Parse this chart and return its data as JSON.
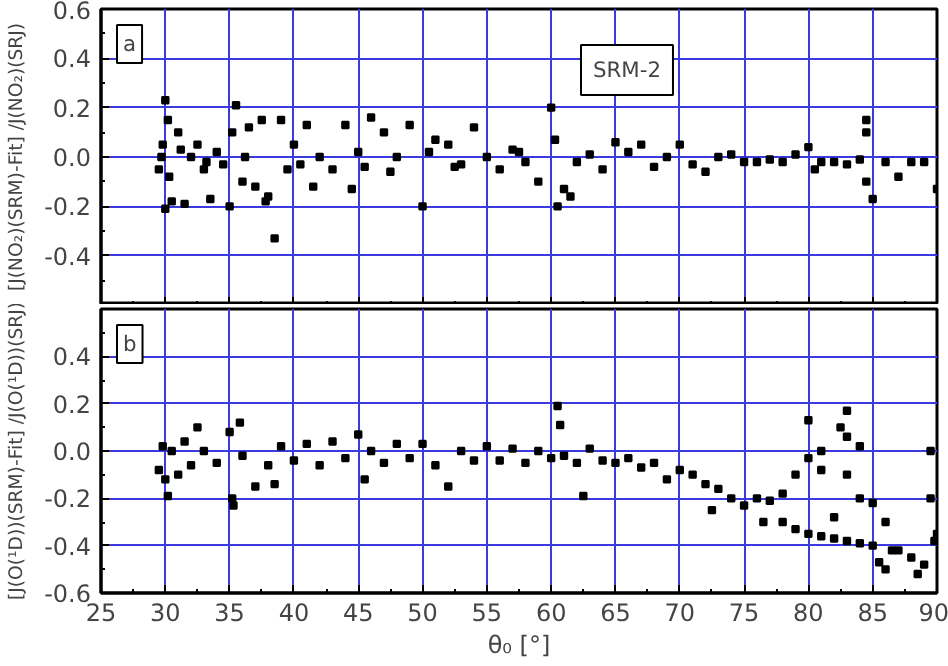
{
  "chart_data": [
    {
      "type": "scatter",
      "ylabel": "[J(NO₂)(SRM)-Fit] /J(NO₂)(SRJ)",
      "annotations": [
        "a",
        "SRM-2"
      ],
      "marker": "square",
      "grid": true,
      "tick_labels": "y",
      "xlim": [
        25,
        90
      ],
      "xticks": [
        25,
        30,
        35,
        40,
        45,
        50,
        55,
        60,
        65,
        70,
        75,
        80,
        85,
        90
      ],
      "ylim": [
        -0.6,
        0.6
      ],
      "yticks": [
        {
          "value": -0.6,
          "label": null
        },
        -0.4,
        -0.2,
        {
          "value": 0,
          "label": "0.0"
        },
        0.2,
        0.4,
        0.6
      ],
      "series": [
        {
          "color": "#000000",
          "x": [
            29.5,
            29.7,
            29.8,
            30,
            30,
            30.2,
            30.3,
            30.5,
            31,
            31.2,
            31.5,
            32,
            32.5,
            33,
            33.2,
            33.5,
            34,
            34.5,
            35,
            35.2,
            35.5,
            36,
            36.2,
            36.5,
            37,
            37.5,
            37.8,
            38,
            38.5,
            39,
            39.5,
            40,
            40.5,
            41,
            41.5,
            42,
            43,
            44,
            44.5,
            45,
            45.5,
            46,
            47,
            47.5,
            48,
            49,
            50,
            50.5,
            51,
            52,
            52.5,
            53,
            54,
            55,
            56,
            57,
            57.5,
            58,
            59,
            60,
            60.3,
            60.5,
            61,
            61.5,
            62,
            63,
            64,
            65,
            66,
            67,
            68,
            69,
            70,
            71,
            72,
            73,
            74,
            75,
            76,
            77,
            78,
            79,
            80,
            80.5,
            81,
            82,
            83,
            84,
            84.5,
            84.5,
            84.5,
            85,
            86,
            87,
            88,
            89,
            90
          ],
          "values": [
            -0.05,
            0.0,
            0.05,
            0.23,
            -0.21,
            0.15,
            -0.08,
            -0.18,
            0.1,
            0.03,
            -0.19,
            0.0,
            0.05,
            -0.05,
            -0.02,
            -0.17,
            0.02,
            -0.03,
            -0.2,
            0.1,
            0.21,
            -0.1,
            0.0,
            0.12,
            -0.12,
            0.15,
            -0.18,
            -0.16,
            -0.33,
            0.15,
            -0.05,
            0.05,
            -0.03,
            0.13,
            -0.12,
            0.0,
            -0.05,
            0.13,
            -0.13,
            0.02,
            -0.04,
            0.16,
            0.1,
            -0.06,
            0.0,
            0.13,
            -0.2,
            0.02,
            0.07,
            0.05,
            -0.04,
            -0.03,
            0.12,
            0.0,
            -0.05,
            0.03,
            0.02,
            -0.02,
            -0.1,
            0.2,
            0.07,
            -0.2,
            -0.13,
            -0.16,
            -0.02,
            0.01,
            -0.05,
            0.06,
            0.02,
            0.05,
            -0.04,
            0.0,
            0.05,
            -0.03,
            -0.06,
            0.0,
            0.01,
            -0.02,
            -0.02,
            -0.01,
            -0.02,
            0.01,
            0.04,
            -0.05,
            -0.02,
            -0.02,
            -0.03,
            -0.01,
            0.15,
            0.1,
            -0.1,
            -0.17,
            -0.02,
            -0.08,
            -0.02,
            -0.02,
            -0.13
          ]
        }
      ]
    },
    {
      "type": "scatter",
      "ylabel": "[J(O(¹D))(SRM)-Fit] /J(O(¹D))(SRJ)",
      "xlabel": "θ₀ [°]",
      "annotations": [
        "b"
      ],
      "marker": "square",
      "grid": true,
      "xlim": [
        25,
        90
      ],
      "xticks": [
        25,
        30,
        35,
        40,
        45,
        50,
        55,
        60,
        65,
        70,
        75,
        80,
        85,
        90
      ],
      "ylim": [
        -0.6,
        0.6
      ],
      "yticks": [
        -0.6,
        -0.4,
        -0.2,
        {
          "value": 0,
          "label": "0.0"
        },
        0.2,
        0.4,
        {
          "value": 0.6,
          "label": null
        }
      ],
      "series": [
        {
          "color": "#000000",
          "x": [
            29.5,
            29.8,
            30,
            30.2,
            30.5,
            31,
            31.5,
            32,
            32.5,
            33,
            34,
            35,
            35.2,
            35.3,
            35.8,
            36,
            37,
            38,
            38.5,
            39,
            40,
            41,
            42,
            43,
            44,
            45,
            45.5,
            46,
            47,
            48,
            49,
            50,
            51,
            52,
            53,
            54,
            55,
            56,
            57,
            58,
            59,
            60,
            60.5,
            60.7,
            61,
            62,
            62.5,
            63,
            64,
            65,
            66,
            67,
            68,
            69,
            70,
            71,
            72,
            72.5,
            73,
            74,
            75,
            76,
            76.5,
            77,
            78,
            78,
            79,
            79,
            80,
            80,
            80,
            81,
            81,
            81,
            82,
            82,
            82.5,
            83,
            83,
            83,
            83,
            84,
            84,
            84,
            85,
            85,
            85.5,
            86,
            86,
            86.5,
            87,
            88,
            88.5,
            89,
            89.5,
            89.5,
            89.8,
            90
          ],
          "values": [
            -0.08,
            0.02,
            -0.12,
            -0.19,
            0.0,
            -0.1,
            0.04,
            -0.06,
            0.1,
            0.0,
            -0.05,
            0.08,
            -0.2,
            -0.23,
            0.12,
            -0.02,
            -0.15,
            -0.06,
            -0.14,
            0.02,
            -0.04,
            0.03,
            -0.06,
            0.04,
            -0.03,
            0.07,
            -0.12,
            0.0,
            -0.05,
            0.03,
            -0.03,
            0.03,
            -0.06,
            -0.15,
            0.0,
            -0.04,
            0.02,
            -0.04,
            0.01,
            -0.05,
            0.0,
            -0.03,
            0.19,
            0.11,
            -0.02,
            -0.05,
            -0.19,
            0.01,
            -0.04,
            -0.05,
            -0.03,
            -0.07,
            -0.05,
            -0.12,
            -0.08,
            -0.1,
            -0.14,
            -0.25,
            -0.16,
            -0.2,
            -0.23,
            -0.2,
            -0.3,
            -0.21,
            -0.18,
            -0.3,
            -0.1,
            -0.33,
            0.13,
            -0.03,
            -0.35,
            -0.08,
            0.0,
            -0.36,
            -0.28,
            -0.37,
            0.1,
            0.17,
            0.06,
            -0.1,
            -0.38,
            -0.2,
            0.02,
            -0.39,
            -0.22,
            -0.4,
            -0.47,
            -0.3,
            -0.5,
            -0.42,
            -0.42,
            -0.45,
            -0.52,
            -0.48,
            0.0,
            -0.2,
            -0.38,
            -0.35
          ]
        }
      ]
    }
  ]
}
